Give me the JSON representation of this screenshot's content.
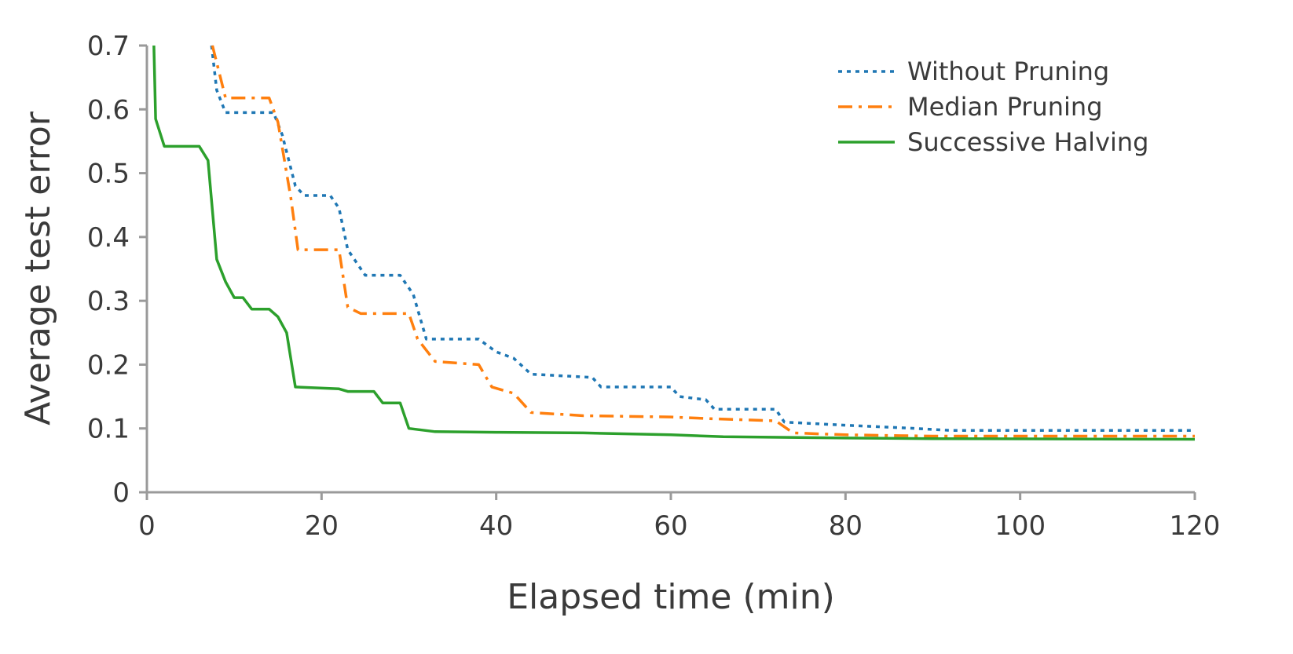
{
  "chart_data": {
    "type": "line",
    "title": "",
    "xlabel": "Elapsed time (min)",
    "ylabel": "Average test error",
    "xlim": [
      0,
      120
    ],
    "ylim": [
      0,
      0.7
    ],
    "xticks": [
      0,
      20,
      40,
      60,
      80,
      100,
      120
    ],
    "xtick_labels": [
      "0",
      "20",
      "40",
      "60",
      "80",
      "100",
      "120"
    ],
    "yticks": [
      0,
      0.1,
      0.2,
      0.3,
      0.4,
      0.5,
      0.6,
      0.7
    ],
    "ytick_labels": [
      "0",
      "0.1",
      "0.2",
      "0.3",
      "0.4",
      "0.5",
      "0.6",
      "0.7"
    ],
    "grid": false,
    "legend_position": "top-right",
    "series": [
      {
        "name": "Without Pruning",
        "color": "#1f77b4",
        "style": "dotted",
        "points": [
          [
            7.4,
            0.7
          ],
          [
            8.0,
            0.63
          ],
          [
            9.0,
            0.595
          ],
          [
            14.5,
            0.595
          ],
          [
            15.5,
            0.56
          ],
          [
            17.0,
            0.48
          ],
          [
            18.0,
            0.465
          ],
          [
            21.0,
            0.465
          ],
          [
            22.0,
            0.445
          ],
          [
            23.0,
            0.38
          ],
          [
            25.0,
            0.34
          ],
          [
            29.0,
            0.34
          ],
          [
            30.5,
            0.31
          ],
          [
            32.0,
            0.24
          ],
          [
            38.0,
            0.24
          ],
          [
            40.0,
            0.22
          ],
          [
            42.0,
            0.21
          ],
          [
            44.0,
            0.185
          ],
          [
            51.0,
            0.18
          ],
          [
            52.0,
            0.165
          ],
          [
            60.0,
            0.165
          ],
          [
            61.0,
            0.15
          ],
          [
            64.0,
            0.145
          ],
          [
            65.0,
            0.13
          ],
          [
            72.0,
            0.13
          ],
          [
            73.0,
            0.11
          ],
          [
            80.0,
            0.105
          ],
          [
            88.0,
            0.1
          ],
          [
            92.0,
            0.097
          ],
          [
            120.0,
            0.097
          ]
        ]
      },
      {
        "name": "Median Pruning",
        "color": "#ff7f0e",
        "style": "dashdot",
        "points": [
          [
            7.5,
            0.7
          ],
          [
            9.0,
            0.618
          ],
          [
            14.0,
            0.618
          ],
          [
            15.0,
            0.58
          ],
          [
            16.5,
            0.46
          ],
          [
            17.3,
            0.38
          ],
          [
            22.0,
            0.38
          ],
          [
            23.0,
            0.29
          ],
          [
            24.5,
            0.28
          ],
          [
            30.0,
            0.28
          ],
          [
            31.0,
            0.24
          ],
          [
            33.0,
            0.205
          ],
          [
            38.0,
            0.2
          ],
          [
            39.5,
            0.165
          ],
          [
            42.0,
            0.155
          ],
          [
            44.0,
            0.125
          ],
          [
            50.0,
            0.12
          ],
          [
            60.0,
            0.118
          ],
          [
            65.0,
            0.115
          ],
          [
            72.0,
            0.112
          ],
          [
            74.0,
            0.093
          ],
          [
            80.0,
            0.09
          ],
          [
            90.0,
            0.088
          ],
          [
            120.0,
            0.088
          ]
        ]
      },
      {
        "name": "Successive Halving",
        "color": "#2ca02c",
        "style": "solid",
        "points": [
          [
            0.8,
            0.7
          ],
          [
            1.0,
            0.585
          ],
          [
            2.0,
            0.542
          ],
          [
            6.0,
            0.542
          ],
          [
            7.0,
            0.52
          ],
          [
            8.0,
            0.365
          ],
          [
            9.0,
            0.33
          ],
          [
            10.0,
            0.305
          ],
          [
            11.0,
            0.305
          ],
          [
            12.0,
            0.287
          ],
          [
            14.0,
            0.287
          ],
          [
            15.0,
            0.275
          ],
          [
            16.0,
            0.25
          ],
          [
            17.0,
            0.165
          ],
          [
            22.0,
            0.162
          ],
          [
            23.0,
            0.158
          ],
          [
            26.0,
            0.158
          ],
          [
            27.0,
            0.14
          ],
          [
            29.0,
            0.14
          ],
          [
            30.0,
            0.1
          ],
          [
            33.0,
            0.095
          ],
          [
            40.0,
            0.094
          ],
          [
            50.0,
            0.093
          ],
          [
            60.0,
            0.09
          ],
          [
            66.0,
            0.087
          ],
          [
            80.0,
            0.085
          ],
          [
            90.0,
            0.084
          ],
          [
            120.0,
            0.083
          ]
        ]
      }
    ]
  }
}
